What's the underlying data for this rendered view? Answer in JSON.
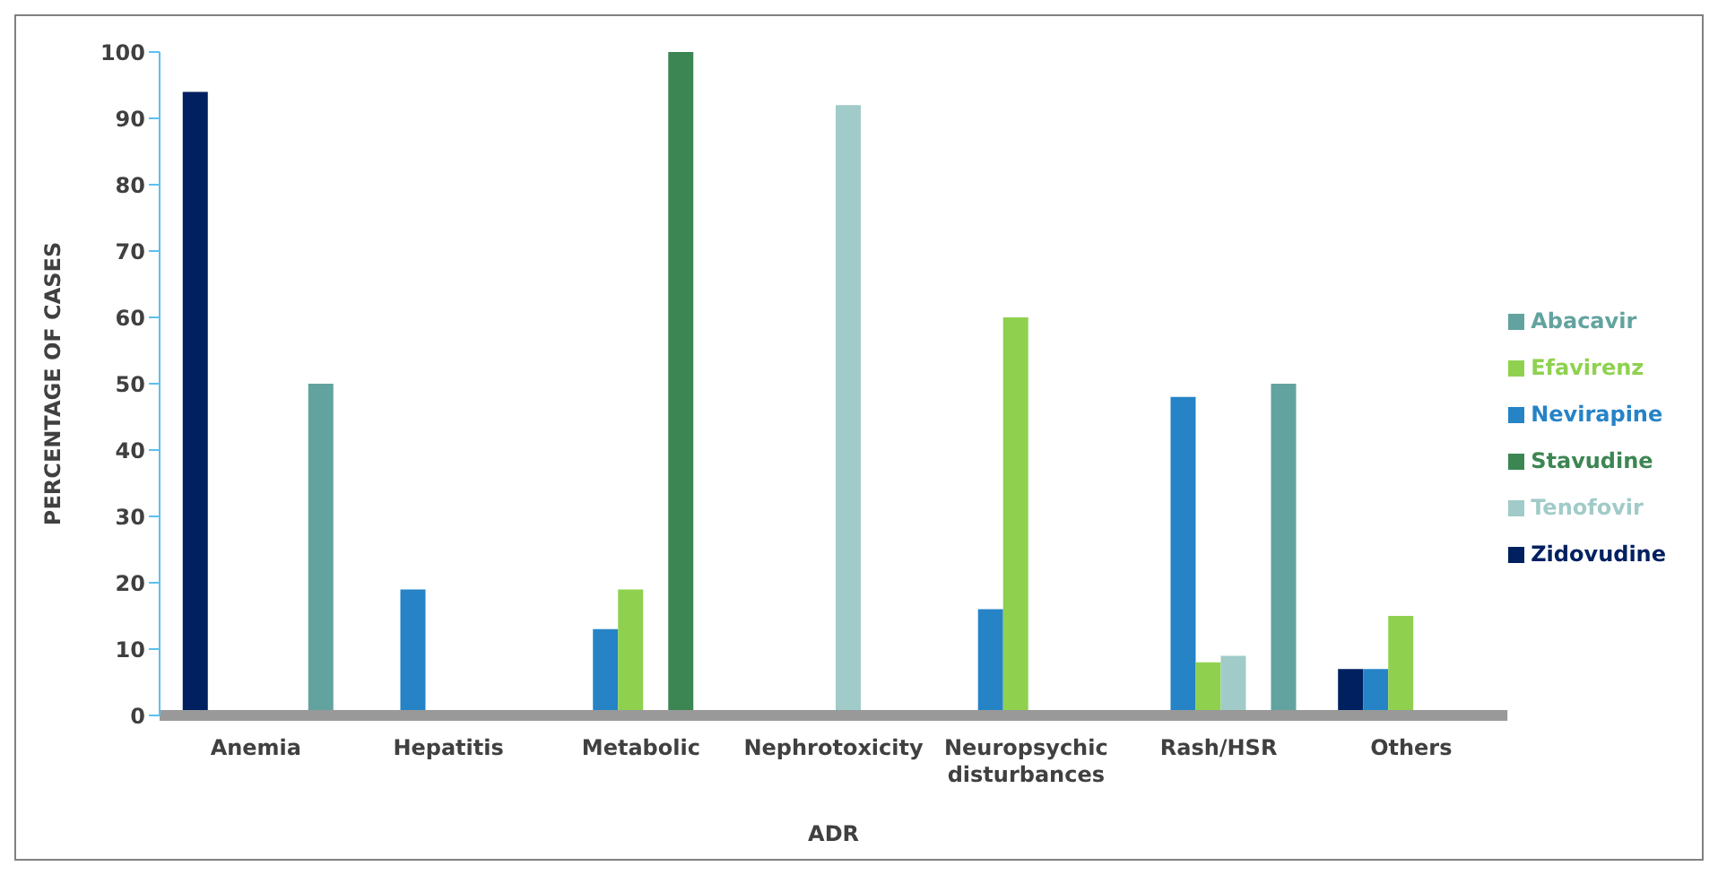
{
  "chart_data": {
    "type": "bar",
    "xlabel": "ADR",
    "ylabel": "PERCENTAGE OF CASES",
    "categories": [
      "Anemia",
      "Hepatitis",
      "Metabolic",
      "Nephrotoxicity",
      "Neuropsychic disturbances",
      "Rash/HSR",
      "Others"
    ],
    "series": [
      {
        "name": "Zidovudine",
        "color": "#002060",
        "values": [
          94,
          null,
          null,
          null,
          null,
          null,
          7
        ]
      },
      {
        "name": "Nevirapine",
        "color": "#2683c6",
        "values": [
          null,
          19,
          13,
          null,
          16,
          48,
          7
        ]
      },
      {
        "name": "Efavirenz",
        "color": "#8fd14f",
        "values": [
          null,
          null,
          19,
          null,
          60,
          8,
          15
        ]
      },
      {
        "name": "Tenofovir",
        "color": "#a1cbc8",
        "values": [
          null,
          null,
          null,
          92,
          null,
          9,
          null
        ]
      },
      {
        "name": "Stavudine",
        "color": "#3c8653",
        "values": [
          null,
          null,
          100,
          null,
          null,
          null,
          null
        ]
      },
      {
        "name": "Abacavir",
        "color": "#62a39f",
        "values": [
          50,
          null,
          null,
          null,
          null,
          50,
          null
        ]
      }
    ],
    "ylim": [
      0,
      100
    ],
    "yticks": [
      0,
      10,
      20,
      30,
      40,
      50,
      60,
      70,
      80,
      90,
      100
    ],
    "grid": false,
    "legend": "right"
  }
}
